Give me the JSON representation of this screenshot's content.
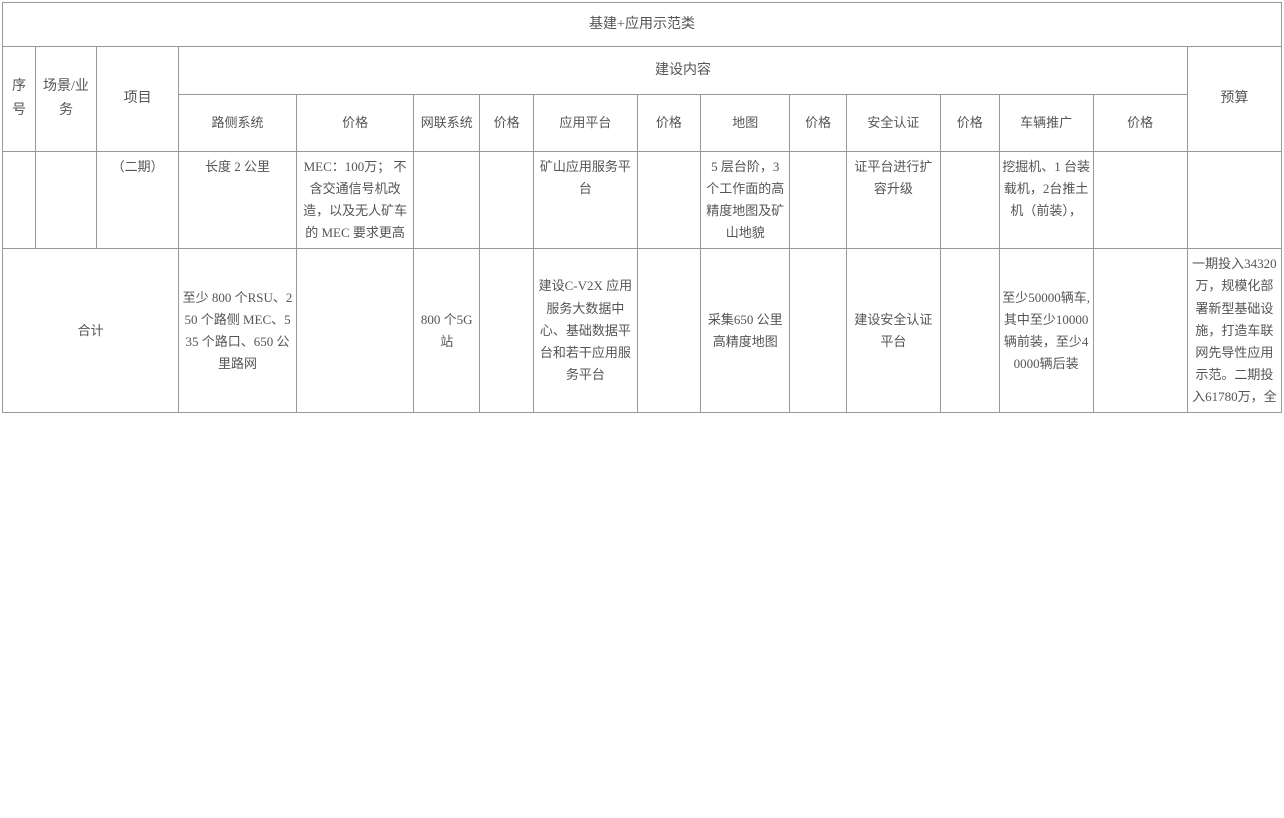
{
  "title": "基建+应用示范类",
  "headers": {
    "seq": "序号",
    "scene": "场景/业务",
    "project": "项目",
    "content": "建设内容",
    "budget": "预算",
    "road_system": "路侧系统",
    "price1": "价格",
    "net_system": "网联系统",
    "price2": "价格",
    "app_platform": "应用平台",
    "price3": "价格",
    "map": "地图",
    "price4": "价格",
    "safety": "安全认证",
    "price5": "价格",
    "vehicle": "车辆推广",
    "price6": "价格"
  },
  "row1": {
    "seq": "",
    "scene": "",
    "project": "（二期）",
    "road_system": "长度 2 公里",
    "road_price": "MEC：100万；\n不含交通信号机改造，以及无人矿车的 MEC 要求更高",
    "net_system": "",
    "net_price": "",
    "app_platform": "矿山应用服务平台",
    "app_price": "",
    "map": "5 层台阶，3 个工作面的高精度地图及矿山地貌",
    "map_price": "",
    "safety": "证平台进行扩容升级",
    "safety_price": "",
    "vehicle": "挖掘机、1 台装载机，2台推土机（前装），",
    "vehicle_price": "",
    "budget": ""
  },
  "row2": {
    "seq": "合计",
    "road_system": "至少 800 个RSU、250 个路侧 MEC、535 个路口、650 公里路网",
    "road_price": "",
    "net_system": "800 个5G 站",
    "net_price": "",
    "app_platform": "建设C-V2X 应用服务大数据中心、基础数据平台和若干应用服务平台",
    "app_price": "",
    "map": "采集650 公里高精度地图",
    "map_price": "",
    "safety": "建设安全认证平台",
    "safety_price": "",
    "vehicle": "至少50000辆车,其中至少10000辆前装，至少40000辆后装",
    "vehicle_price": "",
    "budget": "一期投入34320万，规模化部署新型基础设施，打造车联网先导性应用示范。二期投入61780万，全"
  }
}
